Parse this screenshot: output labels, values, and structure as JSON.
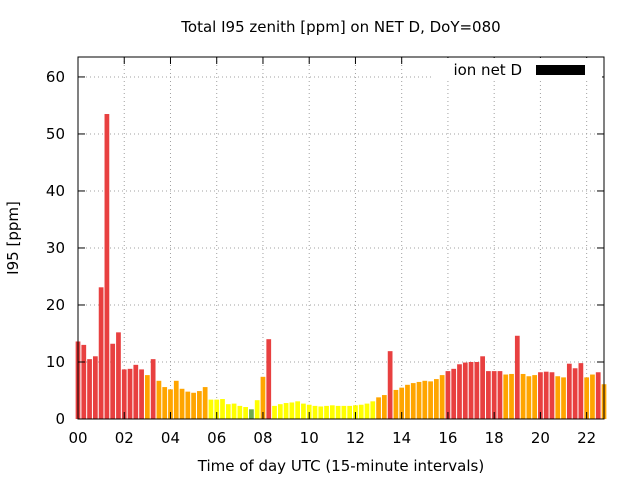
{
  "chart_data": {
    "type": "bar",
    "title": "Total I95 zenith [ppm] on NET D, DoY=080",
    "xlabel": "Time of day UTC (15-minute intervals)",
    "ylabel": "I95 [ppm]",
    "xlim": [
      0,
      22.75
    ],
    "ylim": [
      0,
      63.5
    ],
    "grid": true,
    "legend": {
      "label": "ion net D",
      "color": "#000000",
      "position": "top-right"
    },
    "x_ticks": [
      "00",
      "02",
      "04",
      "06",
      "08",
      "10",
      "12",
      "14",
      "16",
      "18",
      "20",
      "22"
    ],
    "y_ticks": [
      "0",
      "10",
      "20",
      "30",
      "40",
      "50",
      "60"
    ],
    "x_tick_values": [
      0,
      2,
      4,
      6,
      8,
      10,
      12,
      14,
      16,
      18,
      20,
      22
    ],
    "y_tick_values": [
      0,
      10,
      20,
      30,
      40,
      50,
      60
    ],
    "interval_hours": 0.25,
    "color_scale": {
      "green": "#6fa84f",
      "yellow": "#ffff00",
      "orange": "#ffa500",
      "red": "#e84040"
    },
    "values": [
      13.6,
      13.0,
      10.5,
      11.0,
      23.1,
      53.5,
      13.2,
      15.2,
      8.7,
      8.8,
      9.5,
      8.7,
      7.7,
      10.5,
      6.7,
      5.6,
      5.2,
      6.7,
      5.3,
      4.8,
      4.6,
      4.9,
      5.6,
      3.4,
      3.4,
      3.5,
      2.6,
      2.7,
      2.3,
      2.1,
      1.7,
      3.3,
      7.4,
      14.0,
      2.3,
      2.6,
      2.8,
      2.9,
      3.1,
      2.7,
      2.5,
      2.3,
      2.2,
      2.3,
      2.4,
      2.3,
      2.3,
      2.3,
      2.4,
      2.5,
      2.7,
      3.1,
      3.8,
      4.2,
      11.9,
      5.1,
      5.5,
      6.0,
      6.3,
      6.5,
      6.7,
      6.6,
      7.0,
      7.7,
      8.4,
      8.8,
      9.6,
      9.9,
      10.0,
      10.0,
      11.0,
      8.4,
      8.4,
      8.4,
      7.8,
      7.9,
      14.6,
      7.9,
      7.5,
      7.7,
      8.2,
      8.3,
      8.2,
      7.5,
      7.3,
      9.7,
      8.9,
      9.8,
      7.3,
      7.8,
      8.2,
      6.1
    ],
    "colors": [
      "red",
      "red",
      "red",
      "red",
      "red",
      "red",
      "red",
      "red",
      "red",
      "red",
      "red",
      "red",
      "orange",
      "red",
      "orange",
      "orange",
      "orange",
      "orange",
      "orange",
      "orange",
      "orange",
      "orange",
      "orange",
      "yellow",
      "yellow",
      "yellow",
      "yellow",
      "yellow",
      "yellow",
      "yellow",
      "green",
      "yellow",
      "orange",
      "red",
      "yellow",
      "yellow",
      "yellow",
      "yellow",
      "yellow",
      "yellow",
      "yellow",
      "yellow",
      "yellow",
      "yellow",
      "yellow",
      "yellow",
      "yellow",
      "yellow",
      "yellow",
      "yellow",
      "yellow",
      "yellow",
      "orange",
      "orange",
      "red",
      "orange",
      "orange",
      "orange",
      "orange",
      "orange",
      "orange",
      "orange",
      "orange",
      "orange",
      "red",
      "red",
      "red",
      "red",
      "red",
      "red",
      "red",
      "red",
      "red",
      "red",
      "orange",
      "orange",
      "red",
      "orange",
      "orange",
      "orange",
      "red",
      "red",
      "red",
      "orange",
      "orange",
      "red",
      "red",
      "red",
      "orange",
      "orange",
      "red",
      "orange"
    ]
  }
}
